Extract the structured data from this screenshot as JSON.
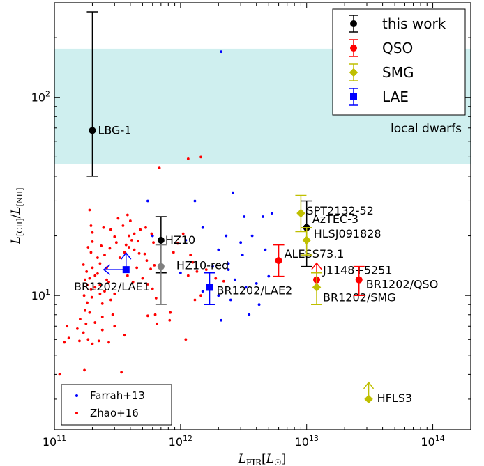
{
  "chart_data": {
    "type": "scatter",
    "title": "",
    "xlabel": "L_FIR[L_☉]",
    "ylabel": "L_[CII]/L_[NII]",
    "xscale": "log",
    "yscale": "log",
    "xlim": [
      100000000000.0,
      200000000000000.0
    ],
    "ylim": [
      2.1,
      300
    ],
    "grid": false,
    "x_ticks": [
      {
        "value": 100000000000.0,
        "base": "10",
        "exp": "11"
      },
      {
        "value": 1000000000000.0,
        "base": "10",
        "exp": "12"
      },
      {
        "value": 10000000000000.0,
        "base": "10",
        "exp": "13"
      },
      {
        "value": 100000000000000.0,
        "base": "10",
        "exp": "14"
      }
    ],
    "y_ticks": [
      {
        "value": 10,
        "base": "10",
        "exp": "1"
      },
      {
        "value": 100,
        "base": "10",
        "exp": "2"
      }
    ],
    "band": {
      "label": "local dwarfs",
      "ymin": 46,
      "ymax": 176,
      "color": "#cfefef"
    },
    "legend": {
      "placement": "top-right",
      "entries": [
        {
          "label": "this work",
          "color": "#000000",
          "marker": "circle"
        },
        {
          "label": "QSO",
          "color": "#ff0000",
          "marker": "circle"
        },
        {
          "label": "SMG",
          "color": "#bfbf00",
          "marker": "diamond"
        },
        {
          "label": "LAE",
          "color": "#0000ff",
          "marker": "square"
        }
      ]
    },
    "small_legend": {
      "placement": "bottom-left",
      "entries": [
        {
          "label": "Farrah+13",
          "color": "#0000ff"
        },
        {
          "label": "Zhao+16",
          "color": "#ff0000"
        }
      ]
    },
    "labeled_points": [
      {
        "label": "LBG-1",
        "x": 200000000000.0,
        "y": 68,
        "yerr_low": 40,
        "yerr_high": 270,
        "color": "#000000",
        "marker": "circle"
      },
      {
        "label": "HZ10",
        "x": 700000000000.0,
        "y": 19,
        "yerr_low": 13,
        "yerr_high": 25,
        "color": "#000000",
        "marker": "circle"
      },
      {
        "label": "HZ10-red",
        "x": 700000000000.0,
        "y": 14,
        "yerr_low": 9,
        "yerr_high": 18,
        "color": "#808080",
        "marker": "circle"
      },
      {
        "label": "BR1202/LAE1",
        "x": 370000000000.0,
        "y": 13.5,
        "color": "#0000ff",
        "marker": "square",
        "limit": "lower-left"
      },
      {
        "label": "BR1202/LAE2",
        "x": 1700000000000.0,
        "y": 11,
        "yerr_low": 9,
        "yerr_high": 13,
        "color": "#0000ff",
        "marker": "square"
      },
      {
        "label": "ALESS73.1",
        "x": 6000000000000.0,
        "y": 15,
        "yerr_low": 12.5,
        "yerr_high": 18,
        "color": "#ff0000",
        "marker": "circle"
      },
      {
        "label": "SPT2132-52",
        "x": 9000000000000.0,
        "y": 26,
        "yerr_low": 21,
        "yerr_high": 32,
        "color": "#bfbf00",
        "marker": "diamond"
      },
      {
        "label": "AzTEC-3",
        "x": 10000000000000.0,
        "y": 22,
        "yerr_low": 14,
        "yerr_high": 30,
        "color": "#000000",
        "marker": "circle"
      },
      {
        "label": "HLSJ091828",
        "x": 10000000000000.0,
        "y": 19,
        "yerr_low": 16,
        "yerr_high": 22,
        "color": "#bfbf00",
        "marker": "diamond"
      },
      {
        "label": "J1148+5251",
        "x": 12000000000000.0,
        "y": 12,
        "color": "#ff0000",
        "marker": "circle",
        "limit": "up"
      },
      {
        "label": "BR1202/SMG",
        "x": 12000000000000.0,
        "y": 11,
        "yerr_low": 9,
        "yerr_high": 13,
        "color": "#bfbf00",
        "marker": "diamond"
      },
      {
        "label": "BR1202/QSO",
        "x": 26000000000000.0,
        "y": 12,
        "yerr_low": 10,
        "yerr_high": 14,
        "color": "#ff0000",
        "marker": "circle"
      },
      {
        "label": "HFLS3",
        "x": 31000000000000.0,
        "y": 3.0,
        "color": "#bfbf00",
        "marker": "diamond",
        "limit": "up"
      }
    ],
    "scatter_series": [
      {
        "name": "Farrah+13",
        "color": "#0000ff",
        "points": [
          [
            2100000000000.0,
            170
          ],
          [
            550000000000.0,
            30
          ],
          [
            1300000000000.0,
            30
          ],
          [
            2600000000000.0,
            33
          ],
          [
            3200000000000.0,
            25
          ],
          [
            4500000000000.0,
            25
          ],
          [
            5300000000000.0,
            26
          ],
          [
            2300000000000.0,
            20
          ],
          [
            3700000000000.0,
            20
          ],
          [
            600000000000.0,
            20
          ],
          [
            1100000000000.0,
            19
          ],
          [
            2000000000000.0,
            17
          ],
          [
            1500000000000.0,
            22
          ],
          [
            3000000000000.0,
            18.5
          ],
          [
            4700000000000.0,
            17
          ],
          [
            1800000000000.0,
            14
          ],
          [
            2400000000000.0,
            13.5
          ],
          [
            1000000000000.0,
            13
          ],
          [
            4000000000000.0,
            11.5
          ],
          [
            2700000000000.0,
            12
          ],
          [
            3300000000000.0,
            11
          ],
          [
            2000000000000.0,
            10
          ],
          [
            1500000000000.0,
            10.5
          ],
          [
            2500000000000.0,
            9.5
          ],
          [
            4200000000000.0,
            9
          ],
          [
            3500000000000.0,
            8
          ],
          [
            2100000000000.0,
            7.5
          ],
          [
            2400000000000.0,
            14.5
          ],
          [
            5000000000000.0,
            12.5
          ],
          [
            3100000000000.0,
            16
          ]
        ]
      },
      {
        "name": "Zhao+16",
        "color": "#ff0000",
        "points": [
          [
            1150000000000.0,
            49
          ],
          [
            1450000000000.0,
            50
          ],
          [
            680000000000.0,
            44
          ],
          [
            158000000000.0,
            5.9
          ],
          [
            173000000000.0,
            4.2
          ],
          [
            110000000000.0,
            4.0
          ],
          [
            126000000000.0,
            7.0
          ],
          [
            120000000000.0,
            5.8
          ],
          [
            130000000000.0,
            6.1
          ],
          [
            152000000000.0,
            6.8
          ],
          [
            170000000000.0,
            6.5
          ],
          [
            178000000000.0,
            7.2
          ],
          [
            185000000000.0,
            6.0
          ],
          [
            200000000000.0,
            5.7
          ],
          [
            225000000000.0,
            5.9
          ],
          [
            270000000000.0,
            5.8
          ],
          [
            300000000000.0,
            7.0
          ],
          [
            240000000000.0,
            6.7
          ],
          [
            160000000000.0,
            7.6
          ],
          [
            175000000000.0,
            8.4
          ],
          [
            190000000000.0,
            8.2
          ],
          [
            210000000000.0,
            7.3
          ],
          [
            240000000000.0,
            7.8
          ],
          [
            290000000000.0,
            8.0
          ],
          [
            360000000000.0,
            6.3
          ],
          [
            340000000000.0,
            4.1
          ],
          [
            550000000000.0,
            7.9
          ],
          [
            630000000000.0,
            8.0
          ],
          [
            830000000000.0,
            8.2
          ],
          [
            1100000000000.0,
            6.0
          ],
          [
            820000000000.0,
            7.5
          ],
          [
            650000000000.0,
            7.2
          ],
          [
            182000000000.0,
            9.2
          ],
          [
            198000000000.0,
            9.8
          ],
          [
            172000000000.0,
            10.0
          ],
          [
            195000000000.0,
            10.7
          ],
          [
            182000000000.0,
            11.3
          ],
          [
            210000000000.0,
            11.0
          ],
          [
            230000000000.0,
            10.2
          ],
          [
            250000000000.0,
            10.5
          ],
          [
            230000000000.0,
            11.3
          ],
          [
            270000000000.0,
            11.7
          ],
          [
            300000000000.0,
            10.2
          ],
          [
            280000000000.0,
            9.5
          ],
          [
            240000000000.0,
            9.1
          ],
          [
            175000000000.0,
            12.0
          ],
          [
            190000000000.0,
            12.2
          ],
          [
            210000000000.0,
            12.6
          ],
          [
            180000000000.0,
            13.2
          ],
          [
            200000000000.0,
            13.8
          ],
          [
            170000000000.0,
            14.3
          ],
          [
            230000000000.0,
            14.5
          ],
          [
            260000000000.0,
            13.8
          ],
          [
            220000000000.0,
            15.5
          ],
          [
            250000000000.0,
            16.0
          ],
          [
            195000000000.0,
            16.5
          ],
          [
            185000000000.0,
            17.5
          ],
          [
            235000000000.0,
            17.8
          ],
          [
            200000000000.0,
            18.7
          ],
          [
            275000000000.0,
            17.3
          ],
          [
            310000000000.0,
            18.5
          ],
          [
            330000000000.0,
            15.5
          ],
          [
            360000000000.0,
            16.5
          ],
          [
            390000000000.0,
            17.5
          ],
          [
            430000000000.0,
            17.0
          ],
          [
            470000000000.0,
            16.3
          ],
          [
            520000000000.0,
            16.2
          ],
          [
            450000000000.0,
            13.8
          ],
          [
            380000000000.0,
            12.6
          ],
          [
            420000000000.0,
            11.7
          ],
          [
            500000000000.0,
            12.2
          ],
          [
            550000000000.0,
            11.4
          ],
          [
            600000000000.0,
            10.8
          ],
          [
            640000000000.0,
            9.7
          ],
          [
            580000000000.0,
            13.6
          ],
          [
            620000000000.0,
            14.2
          ],
          [
            300000000000.0,
            19.8
          ],
          [
            280000000000.0,
            21.5
          ],
          [
            350000000000.0,
            22.5
          ],
          [
            320000000000.0,
            24.5
          ],
          [
            380000000000.0,
            25.5
          ],
          [
            400000000000.0,
            23.8
          ],
          [
            430000000000.0,
            20.5
          ],
          [
            480000000000.0,
            21.5
          ],
          [
            530000000000.0,
            22.0
          ],
          [
            590000000000.0,
            20.5
          ],
          [
            390000000000.0,
            20.0
          ],
          [
            410000000000.0,
            19.0
          ],
          [
            190000000000.0,
            27.0
          ],
          [
            195000000000.0,
            22.5
          ],
          [
            200000000000.0,
            20.8
          ],
          [
            245000000000.0,
            22.0
          ],
          [
            370000000000.0,
            18.0
          ],
          [
            460000000000.0,
            18.8
          ],
          [
            540000000000.0,
            15.0
          ],
          [
            610000000000.0,
            18.5
          ],
          [
            950000000000.0,
            18.3
          ],
          [
            880000000000.0,
            16.5
          ],
          [
            1050000000000.0,
            20.5
          ],
          [
            1200000000000.0,
            16.0
          ],
          [
            1350000000000.0,
            13.2
          ],
          [
            1150000000000.0,
            12.6
          ],
          [
            1450000000000.0,
            10.0
          ],
          [
            1300000000000.0,
            9.5
          ],
          [
            1600000000000.0,
            13.5
          ],
          [
            1900000000000.0,
            12.2
          ],
          [
            1700000000000.0,
            10.8
          ],
          [
            2200000000000.0,
            11.8
          ],
          [
            1250000000000.0,
            14.7
          ],
          [
            220000000000.0,
            12.9
          ],
          [
            260000000000.0,
            12.0
          ]
        ]
      }
    ]
  }
}
